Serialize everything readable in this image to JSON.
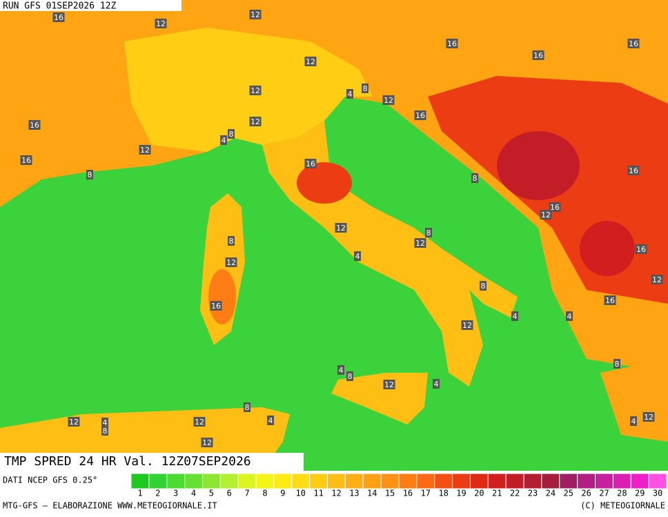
{
  "header": {
    "run": "RUN GFS 01SEP2026 12Z"
  },
  "footer": {
    "product": "TMP SPRED 24 HR Val. 12Z07SEP2026",
    "source": "DATI NCEP GFS 0.25°",
    "credit_left": "MTG-GFS — ELABORAZIONE WWW.METEOGIORNALE.IT",
    "credit_right": "(C) METEOGIORNALE"
  },
  "legend": {
    "values": [
      1,
      2,
      3,
      4,
      5,
      6,
      7,
      8,
      9,
      10,
      11,
      12,
      13,
      14,
      15,
      16,
      17,
      18,
      19,
      20,
      21,
      22,
      23,
      24,
      25,
      26,
      27,
      28,
      29,
      30
    ],
    "colors": [
      "#1ec81e",
      "#32d232",
      "#4bdc32",
      "#64e132",
      "#8ce632",
      "#b4f032",
      "#dcf51e",
      "#f5f514",
      "#ffeb14",
      "#ffdc14",
      "#ffcd14",
      "#ffbe14",
      "#ffaf14",
      "#ffa014",
      "#ff9114",
      "#ff7d14",
      "#ff6914",
      "#f55014",
      "#eb3c14",
      "#e12814",
      "#d21e1e",
      "#c31e28",
      "#b41e32",
      "#a51e3c",
      "#a01e64",
      "#b41e82",
      "#c81ea0",
      "#dc1eb4",
      "#f01ec8",
      "#ff50e6"
    ]
  },
  "contour_labels": [
    "16",
    "12",
    "12",
    "16",
    "16",
    "16",
    "12",
    "12",
    "4",
    "8",
    "12",
    "16",
    "16",
    "12",
    "8",
    "4",
    "12",
    "16",
    "16",
    "16",
    "8",
    "8",
    "16",
    "12",
    "12",
    "8",
    "8",
    "12",
    "12",
    "4",
    "16",
    "12",
    "8",
    "16",
    "16",
    "4",
    "12",
    "4",
    "8",
    "4",
    "8",
    "12",
    "4",
    "12",
    "4",
    "8",
    "12",
    "8",
    "4",
    "12",
    "4",
    "12"
  ]
}
